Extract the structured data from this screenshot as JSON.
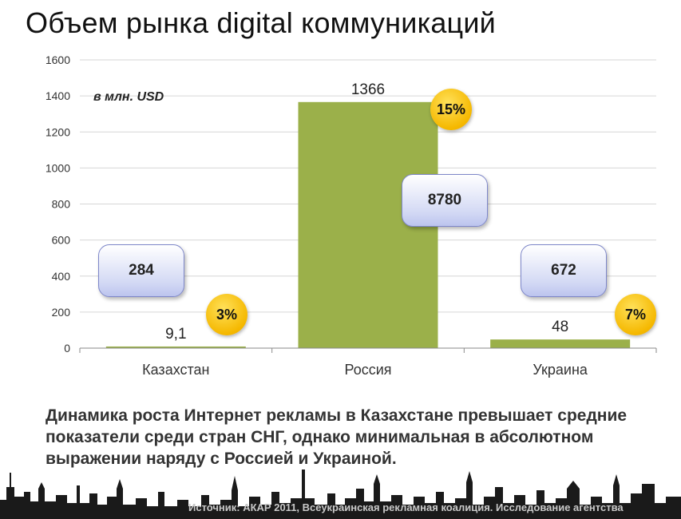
{
  "title": "Объем рынка digital коммуникаций",
  "unit_label": "в млн. USD",
  "chart_data": {
    "type": "bar",
    "categories": [
      "Казахстан",
      "Россия",
      "Украина"
    ],
    "values": [
      9.1,
      1366,
      48
    ],
    "value_labels": [
      "9,1",
      "1366",
      "48"
    ],
    "ylim": [
      0,
      1600
    ],
    "yticks": [
      0,
      200,
      400,
      600,
      800,
      1000,
      1200,
      1400,
      1600
    ],
    "grid": true,
    "bar_color": "#9bb04a",
    "annotations": [
      {
        "category": "Казахстан",
        "box_value": "284",
        "growth": "3%"
      },
      {
        "category": "Россия",
        "box_value": "8780",
        "growth": "15%"
      },
      {
        "category": "Украина",
        "box_value": "672",
        "growth": "7%"
      }
    ]
  },
  "caption": "Динамика роста Интернет рекламы в Казахстане превышает средние показатели  среди стран СНГ, однако минимальная в абсолютном выражении наряду с Россией и Украиной.",
  "source": "Источник: АКАР 2011, Всеукраинская рекламная коалиция. Исследование агентства"
}
